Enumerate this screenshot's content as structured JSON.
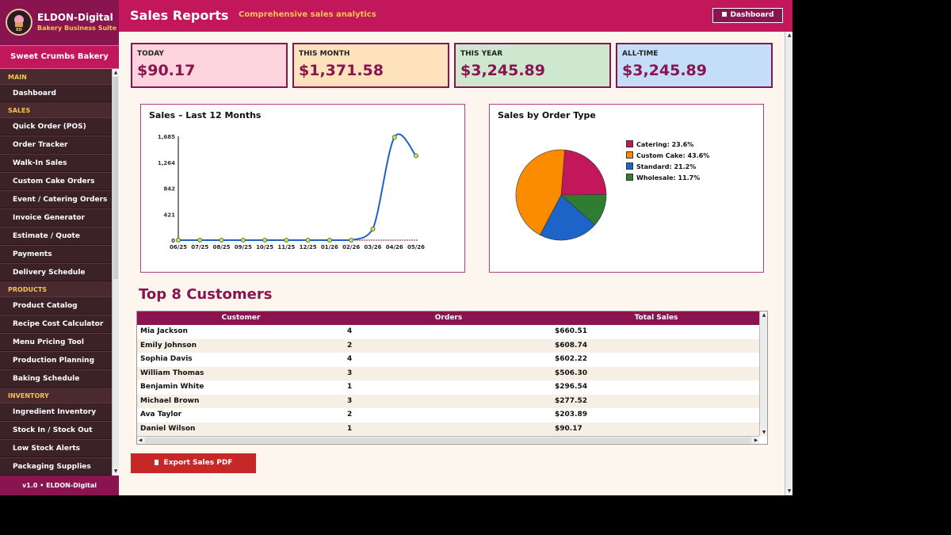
{
  "brand": {
    "name": "ELDON-Digital",
    "subtitle": "Bakery Business Suite",
    "logo_text": "ED"
  },
  "shop_name": "Sweet Crumbs Bakery",
  "sidebar": {
    "sections": [
      {
        "title": "MAIN",
        "items": [
          "Dashboard"
        ]
      },
      {
        "title": "SALES",
        "items": [
          "Quick Order (POS)",
          "Order Tracker",
          "Walk-In Sales",
          "Custom Cake Orders",
          "Event / Catering Orders",
          "Invoice Generator",
          "Estimate / Quote",
          "Payments",
          "Delivery Schedule"
        ]
      },
      {
        "title": "PRODUCTS",
        "items": [
          "Product Catalog",
          "Recipe Cost Calculator",
          "Menu Pricing Tool",
          "Production Planning",
          "Baking Schedule"
        ]
      },
      {
        "title": "INVENTORY",
        "items": [
          "Ingredient Inventory",
          "Stock In / Stock Out",
          "Low Stock Alerts",
          "Packaging Supplies"
        ]
      }
    ],
    "version": "v1.0  •  ELDON-Digital"
  },
  "header": {
    "title": "Sales Reports",
    "subtitle": "Comprehensive sales analytics",
    "dashboard_button": "Dashboard"
  },
  "cards": [
    {
      "label": "TODAY",
      "value": "$90.17",
      "bg": "#fdd4de"
    },
    {
      "label": "THIS MONTH",
      "value": "$1,371.58",
      "bg": "#fde2bc"
    },
    {
      "label": "THIS YEAR",
      "value": "$3,245.89",
      "bg": "#cde8cf"
    },
    {
      "label": "ALL-TIME",
      "value": "$3,245.89",
      "bg": "#c4def7"
    }
  ],
  "line_chart_title": "Sales – Last 12 Months",
  "pie_chart_title": "Sales by Order Type",
  "chart_data": [
    {
      "type": "line",
      "title": "Sales – Last 12 Months",
      "x": [
        "06/25",
        "07/25",
        "08/25",
        "09/25",
        "10/25",
        "11/25",
        "12/25",
        "01/26",
        "02/26",
        "03/26",
        "04/26",
        "05/26"
      ],
      "values": [
        0,
        0,
        0,
        0,
        0,
        0,
        0,
        0,
        0,
        180,
        1670,
        1370
      ],
      "yticks": [
        "0",
        "421",
        "842",
        "1,264",
        "1,685"
      ],
      "ylim": [
        0,
        1685
      ],
      "color": "#1e62c8"
    },
    {
      "type": "pie",
      "title": "Sales by Order Type",
      "slices": [
        {
          "label": "Catering",
          "pct": 23.6,
          "color": "#c2185b"
        },
        {
          "label": "Custom Cake",
          "pct": 43.6,
          "color": "#fb8c00"
        },
        {
          "label": "Standard",
          "pct": 21.2,
          "color": "#1e63c8"
        },
        {
          "label": "Wholesale",
          "pct": 11.7,
          "color": "#2e7d32"
        }
      ],
      "legend": [
        "Catering: 23.6%",
        "Custom Cake: 43.6%",
        "Standard: 21.2%",
        "Wholesale: 11.7%"
      ]
    }
  ],
  "customers": {
    "title": "Top 8 Customers",
    "columns": [
      "Customer",
      "Orders",
      "Total Sales"
    ],
    "rows": [
      [
        "Mia Jackson",
        "4",
        "$660.51"
      ],
      [
        "Emily Johnson",
        "2",
        "$608.74"
      ],
      [
        "Sophia Davis",
        "4",
        "$602.22"
      ],
      [
        "William Thomas",
        "3",
        "$506.30"
      ],
      [
        "Benjamin White",
        "1",
        "$296.54"
      ],
      [
        "Michael Brown",
        "3",
        "$277.52"
      ],
      [
        "Ava Taylor",
        "2",
        "$203.89"
      ],
      [
        "Daniel Wilson",
        "1",
        "$90.17"
      ]
    ]
  },
  "export_button": "Export Sales PDF"
}
